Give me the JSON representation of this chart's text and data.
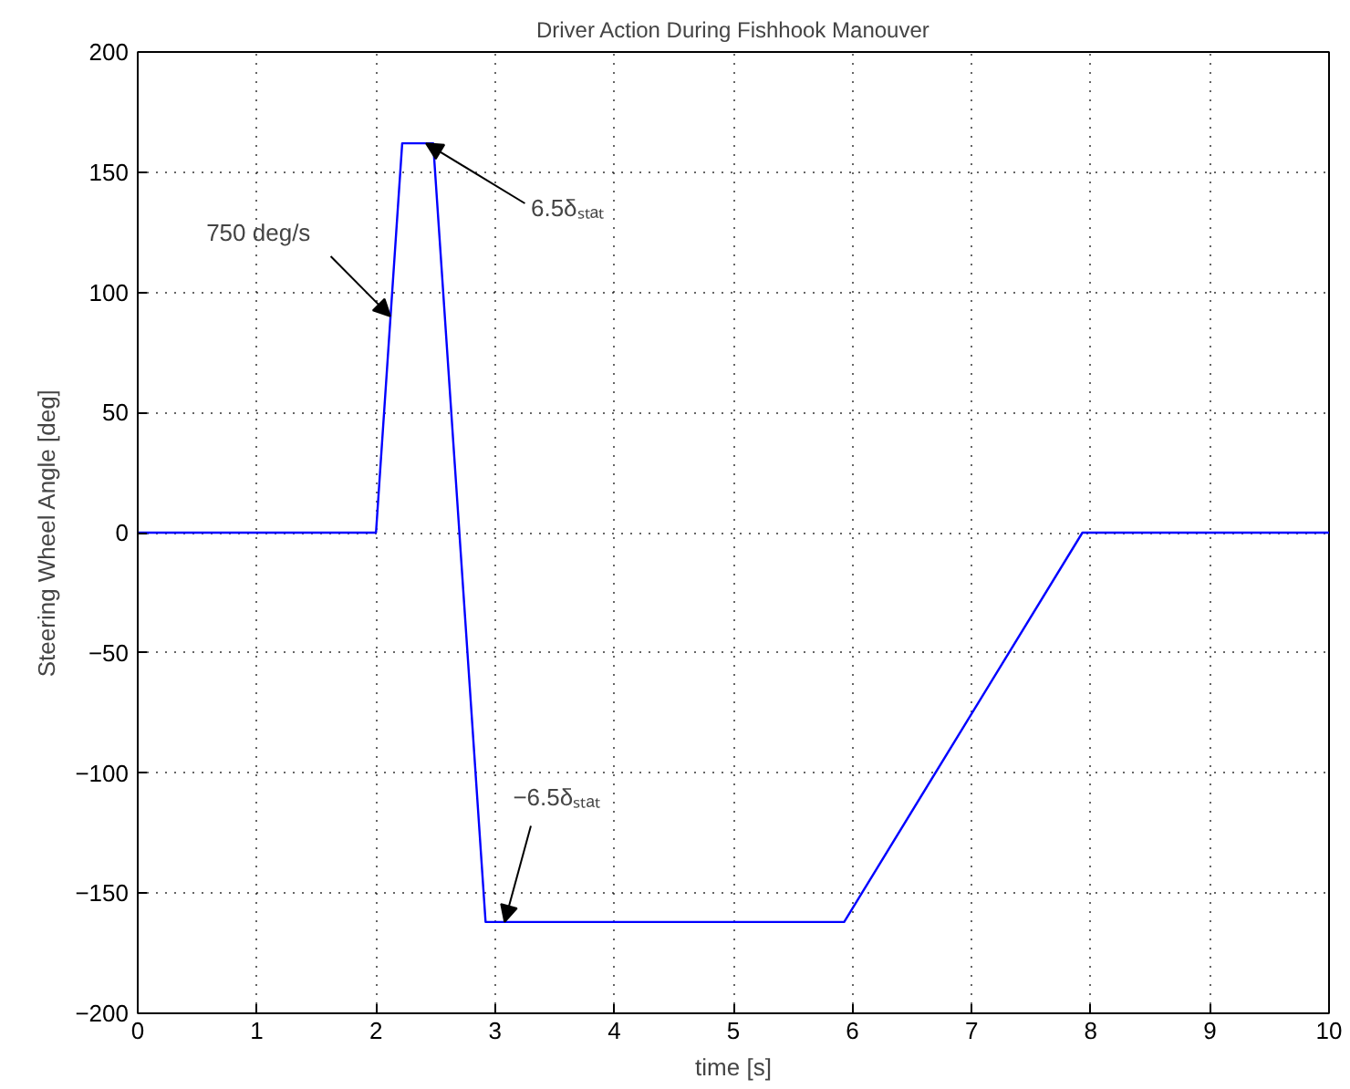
{
  "chart_data": {
    "type": "line",
    "title": "Driver Action During Fishhook Manouver",
    "xlabel": "time [s]",
    "ylabel": "Steering Wheel Angle [deg]",
    "x": [
      0,
      2,
      2.22,
      2.48,
      2.92,
      5.93,
      7.93,
      10
    ],
    "series": [
      {
        "color": "#0000ff",
        "values": [
          0,
          0,
          162,
          162,
          -162,
          -162,
          0,
          0
        ]
      }
    ],
    "xlim": [
      0,
      10
    ],
    "ylim": [
      -200,
      200
    ],
    "xticks": [
      0,
      1,
      2,
      3,
      4,
      5,
      6,
      7,
      8,
      9,
      10
    ],
    "yticks": [
      -200,
      -150,
      -100,
      -50,
      0,
      50,
      100,
      150,
      200
    ],
    "grid": true,
    "line_style": "solid",
    "annotations": [
      {
        "text": "750 deg/s",
        "x": 2.12,
        "y": 90
      },
      {
        "text": "6.5δₛₜₐₜ",
        "x": 2.42,
        "y": 162
      },
      {
        "text": "−6.5δₛₜₐₜ",
        "x": 3.08,
        "y": -162
      }
    ]
  }
}
